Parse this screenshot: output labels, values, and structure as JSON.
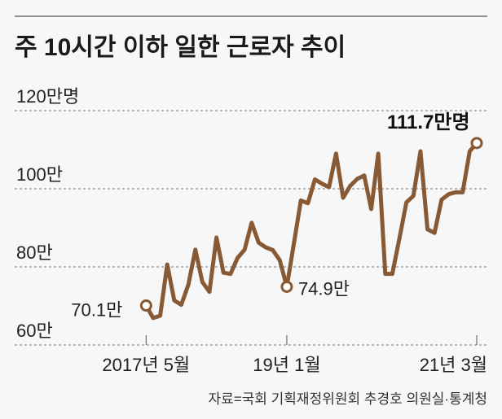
{
  "chart_data": {
    "type": "line",
    "title": "주 10시간 이하 일한 근로자 추이",
    "unit_label": "120만명",
    "ylim": [
      60,
      120
    ],
    "yticks": [
      {
        "value": 120,
        "label": "120만명"
      },
      {
        "value": 100,
        "label": "100만"
      },
      {
        "value": 80,
        "label": "80만"
      },
      {
        "value": 60,
        "label": "60만"
      }
    ],
    "grid": true,
    "xticks": [
      {
        "index": 0,
        "label": "2017년 5월"
      },
      {
        "index": 20,
        "label": "19년 1월"
      },
      {
        "index": 47,
        "label": "21년 3월"
      }
    ],
    "x_range": "2017-05 to 2021-03 (monthly)",
    "series": [
      {
        "name": "주 10시간 이하 근로자(만명)",
        "color": "#875a35",
        "values": [
          70.1,
          66.9,
          67.5,
          80.6,
          71.4,
          70.3,
          75.4,
          84.4,
          76.1,
          73.6,
          87.5,
          78.5,
          78.2,
          82.3,
          84.4,
          91.3,
          86.2,
          85.0,
          84.3,
          81.7,
          74.9,
          85.9,
          97.0,
          96.3,
          102.4,
          101.3,
          100.4,
          109.0,
          97.7,
          100.7,
          102.5,
          103.4,
          94.8,
          109.0,
          78.2,
          78.2,
          87.2,
          96.5,
          98.2,
          109.6,
          89.6,
          88.7,
          97.2,
          98.6,
          99.1,
          99.1,
          109.6,
          111.7
        ]
      }
    ],
    "annotations": [
      {
        "index": 0,
        "label": "70.1만"
      },
      {
        "index": 20,
        "label": "74.9만"
      },
      {
        "index": 47,
        "label": "111.7만명"
      }
    ],
    "source": "자료=국회 기획재정위원회 추경호 의원실·통계청"
  }
}
